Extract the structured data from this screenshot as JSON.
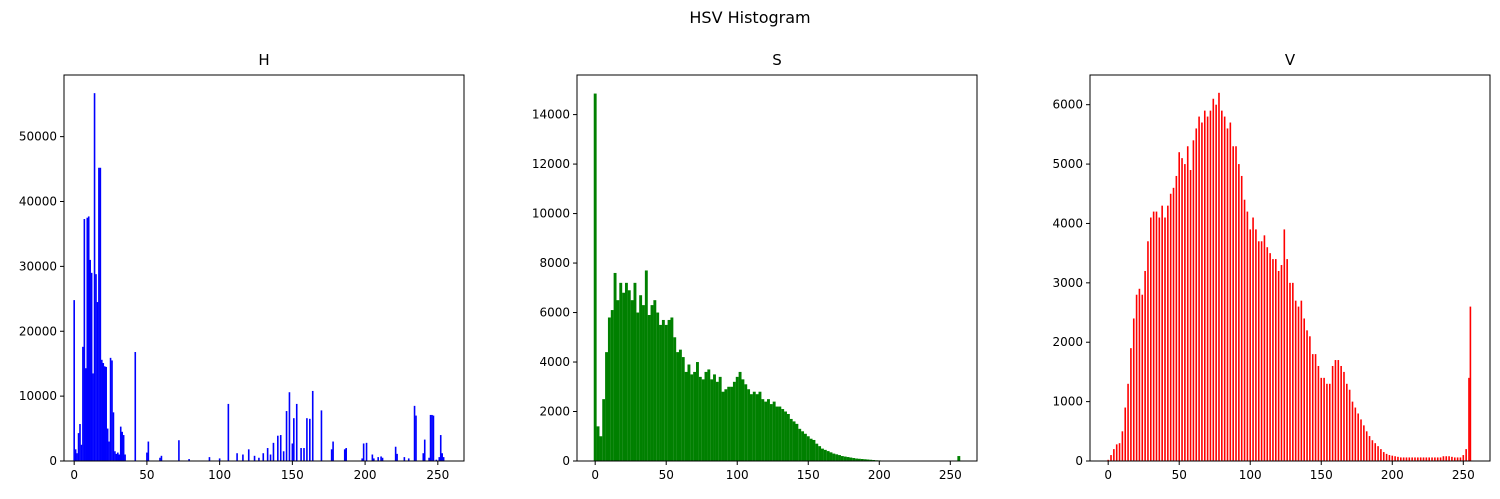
{
  "figure": {
    "suptitle": "HSV Histogram"
  },
  "chart_data": [
    {
      "type": "bar",
      "title": "H",
      "color": "#0000ff",
      "xlabel": "",
      "ylabel": "",
      "xlim": [
        -7,
        268
      ],
      "ylim": [
        0,
        59500
      ],
      "xticks": [
        0,
        50,
        100,
        150,
        200,
        250
      ],
      "yticks": [
        0,
        10000,
        20000,
        30000,
        40000,
        50000
      ],
      "series": [
        {
          "x": [
            0,
            1,
            2,
            3,
            4,
            5,
            6,
            7,
            8,
            9,
            10,
            11,
            12,
            13,
            14,
            15,
            16,
            17,
            18,
            19,
            20,
            21,
            22,
            23,
            24,
            25,
            26,
            27,
            28,
            29,
            30,
            31,
            32,
            33,
            34,
            35,
            42,
            50,
            51,
            59,
            60,
            72,
            79,
            93,
            100,
            106,
            112,
            116,
            120,
            124,
            127,
            130,
            133,
            135,
            137,
            140,
            142,
            144,
            146,
            148,
            150,
            151,
            153,
            156,
            158,
            160,
            162,
            164,
            170,
            177,
            178,
            186,
            187,
            198,
            199,
            201,
            205,
            206,
            209,
            211,
            212,
            221,
            222,
            227,
            230,
            234,
            235,
            240,
            241,
            244,
            245,
            246,
            247,
            249,
            251,
            252,
            253,
            254
          ],
          "y": [
            24800,
            1800,
            1200,
            4300,
            5700,
            2500,
            17600,
            37300,
            14300,
            37500,
            37700,
            31000,
            29000,
            13500,
            56700,
            28800,
            24500,
            45200,
            45200,
            15600,
            15100,
            14600,
            14500,
            5000,
            3000,
            15900,
            15500,
            7500,
            1500,
            1100,
            1300,
            1000,
            5300,
            4500,
            4000,
            1000,
            16800,
            1300,
            3000,
            500,
            800,
            3200,
            300,
            600,
            400,
            8800,
            1200,
            1000,
            1800,
            800,
            500,
            1200,
            2000,
            1000,
            2800,
            3900,
            4000,
            1500,
            7700,
            10600,
            2700,
            6600,
            8800,
            2000,
            2000,
            6600,
            6500,
            10800,
            7800,
            1800,
            3000,
            1800,
            2000,
            400,
            2700,
            2800,
            1000,
            400,
            600,
            700,
            500,
            2200,
            1100,
            600,
            400,
            8500,
            7000,
            1200,
            3300,
            500,
            7100,
            7100,
            7000,
            200,
            600,
            4000,
            1200,
            600
          ]
        }
      ]
    },
    {
      "type": "bar",
      "title": "S",
      "color": "#008000",
      "xlabel": "",
      "ylabel": "",
      "xlim": [
        -12.8,
        268.8
      ],
      "ylim": [
        0,
        15600
      ],
      "xticks": [
        0,
        50,
        100,
        150,
        200,
        250
      ],
      "yticks": [
        0,
        2000,
        4000,
        6000,
        8000,
        10000,
        12000,
        14000
      ],
      "series": [
        {
          "x": [
            0,
            2,
            4,
            6,
            8,
            10,
            12,
            14,
            16,
            18,
            20,
            22,
            24,
            26,
            28,
            30,
            32,
            34,
            36,
            38,
            40,
            42,
            44,
            46,
            48,
            50,
            52,
            54,
            56,
            58,
            60,
            62,
            64,
            66,
            68,
            70,
            72,
            74,
            76,
            78,
            80,
            82,
            84,
            86,
            88,
            90,
            92,
            94,
            96,
            98,
            100,
            102,
            104,
            106,
            108,
            110,
            112,
            114,
            116,
            118,
            120,
            122,
            124,
            126,
            128,
            130,
            132,
            134,
            136,
            138,
            140,
            142,
            144,
            146,
            148,
            150,
            152,
            154,
            156,
            158,
            160,
            162,
            164,
            166,
            168,
            170,
            172,
            174,
            176,
            178,
            180,
            182,
            184,
            186,
            188,
            190,
            192,
            194,
            196,
            198,
            200,
            202,
            204,
            206,
            208,
            210,
            212,
            214,
            216,
            218,
            220,
            222,
            224,
            226,
            228,
            230,
            232,
            234,
            236,
            238,
            240,
            242,
            244,
            246,
            248,
            250,
            252,
            254,
            256
          ],
          "y": [
            14850,
            1400,
            1000,
            2500,
            4400,
            5800,
            6100,
            7600,
            6500,
            7200,
            6800,
            7200,
            6900,
            6500,
            7200,
            6000,
            6700,
            6300,
            7700,
            5900,
            6300,
            6500,
            6000,
            5500,
            5700,
            5500,
            5700,
            5800,
            5000,
            4400,
            4500,
            4200,
            3600,
            3900,
            3500,
            3600,
            4000,
            3400,
            3300,
            3600,
            3700,
            3300,
            3500,
            3200,
            3400,
            2800,
            2900,
            3000,
            3000,
            3200,
            3400,
            3600,
            3300,
            3100,
            2900,
            2700,
            2800,
            2700,
            2800,
            2500,
            2400,
            2500,
            2300,
            2400,
            2200,
            2200,
            2100,
            2000,
            1900,
            1700,
            1600,
            1500,
            1300,
            1200,
            1100,
            1000,
            900,
            850,
            700,
            600,
            500,
            450,
            400,
            350,
            300,
            270,
            240,
            200,
            180,
            160,
            140,
            120,
            100,
            90,
            80,
            70,
            60,
            50,
            40,
            30,
            25,
            20,
            15,
            10,
            10,
            10,
            8,
            6,
            5,
            4,
            3,
            3,
            2,
            2,
            2,
            1,
            1,
            1,
            1,
            1,
            1,
            1,
            1,
            1,
            1,
            1,
            1,
            1,
            200
          ]
        }
      ]
    },
    {
      "type": "bar",
      "title": "V",
      "color": "#ff0000",
      "xlabel": "",
      "ylabel": "",
      "xlim": [
        -12.8,
        268.8
      ],
      "ylim": [
        0,
        6500
      ],
      "xticks": [
        0,
        50,
        100,
        150,
        200,
        250
      ],
      "yticks": [
        0,
        1000,
        2000,
        3000,
        4000,
        5000,
        6000
      ],
      "series": [
        {
          "x": [
            0,
            2,
            4,
            6,
            8,
            10,
            12,
            14,
            16,
            18,
            20,
            22,
            24,
            26,
            28,
            30,
            32,
            34,
            36,
            38,
            40,
            42,
            44,
            46,
            48,
            50,
            52,
            54,
            56,
            58,
            60,
            62,
            64,
            66,
            68,
            70,
            72,
            74,
            76,
            78,
            80,
            82,
            84,
            86,
            88,
            90,
            92,
            94,
            96,
            98,
            100,
            102,
            104,
            106,
            108,
            110,
            112,
            114,
            116,
            118,
            120,
            122,
            124,
            126,
            128,
            130,
            132,
            134,
            136,
            138,
            140,
            142,
            144,
            146,
            148,
            150,
            152,
            154,
            156,
            158,
            160,
            162,
            164,
            166,
            168,
            170,
            172,
            174,
            176,
            178,
            180,
            182,
            184,
            186,
            188,
            190,
            192,
            194,
            196,
            198,
            200,
            202,
            204,
            206,
            208,
            210,
            212,
            214,
            216,
            218,
            220,
            222,
            224,
            226,
            228,
            230,
            232,
            234,
            236,
            238,
            240,
            242,
            244,
            246,
            248,
            250,
            252,
            254,
            255
          ],
          "y": [
            20,
            100,
            200,
            280,
            300,
            500,
            900,
            1300,
            1900,
            2400,
            2800,
            2900,
            2800,
            3200,
            3700,
            4100,
            4200,
            4200,
            4100,
            4300,
            4100,
            4300,
            4500,
            4600,
            4800,
            5200,
            5100,
            5000,
            5300,
            4900,
            5400,
            5600,
            5800,
            5700,
            5900,
            5800,
            5900,
            6100,
            6000,
            6200,
            5900,
            5800,
            5600,
            5700,
            5300,
            5300,
            5000,
            4800,
            4400,
            4200,
            3900,
            4100,
            3900,
            3700,
            3700,
            3800,
            3600,
            3500,
            3400,
            3400,
            3200,
            3300,
            3900,
            3400,
            3000,
            3000,
            2700,
            2600,
            2700,
            2400,
            2200,
            2100,
            1800,
            1800,
            1600,
            1400,
            1400,
            1300,
            1300,
            1600,
            1700,
            1700,
            1600,
            1500,
            1300,
            1200,
            1000,
            900,
            800,
            700,
            600,
            500,
            420,
            350,
            300,
            250,
            200,
            150,
            120,
            100,
            90,
            80,
            70,
            60,
            60,
            60,
            60,
            60,
            60,
            60,
            60,
            60,
            60,
            60,
            60,
            60,
            60,
            60,
            80,
            80,
            80,
            70,
            60,
            60,
            60,
            100,
            200,
            1400,
            2600
          ]
        }
      ]
    }
  ]
}
